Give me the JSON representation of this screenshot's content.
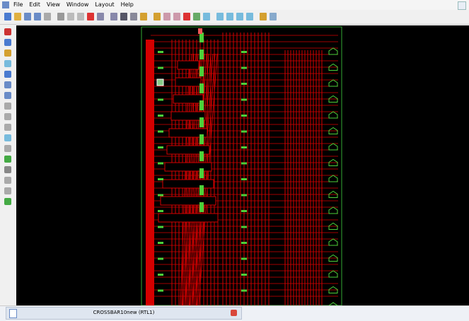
{
  "menu": [
    "File",
    "Edit",
    "View",
    "Window",
    "Layout",
    "Help"
  ],
  "tab": {
    "title": "CROSSBAR10new (RTL1)"
  }
}
